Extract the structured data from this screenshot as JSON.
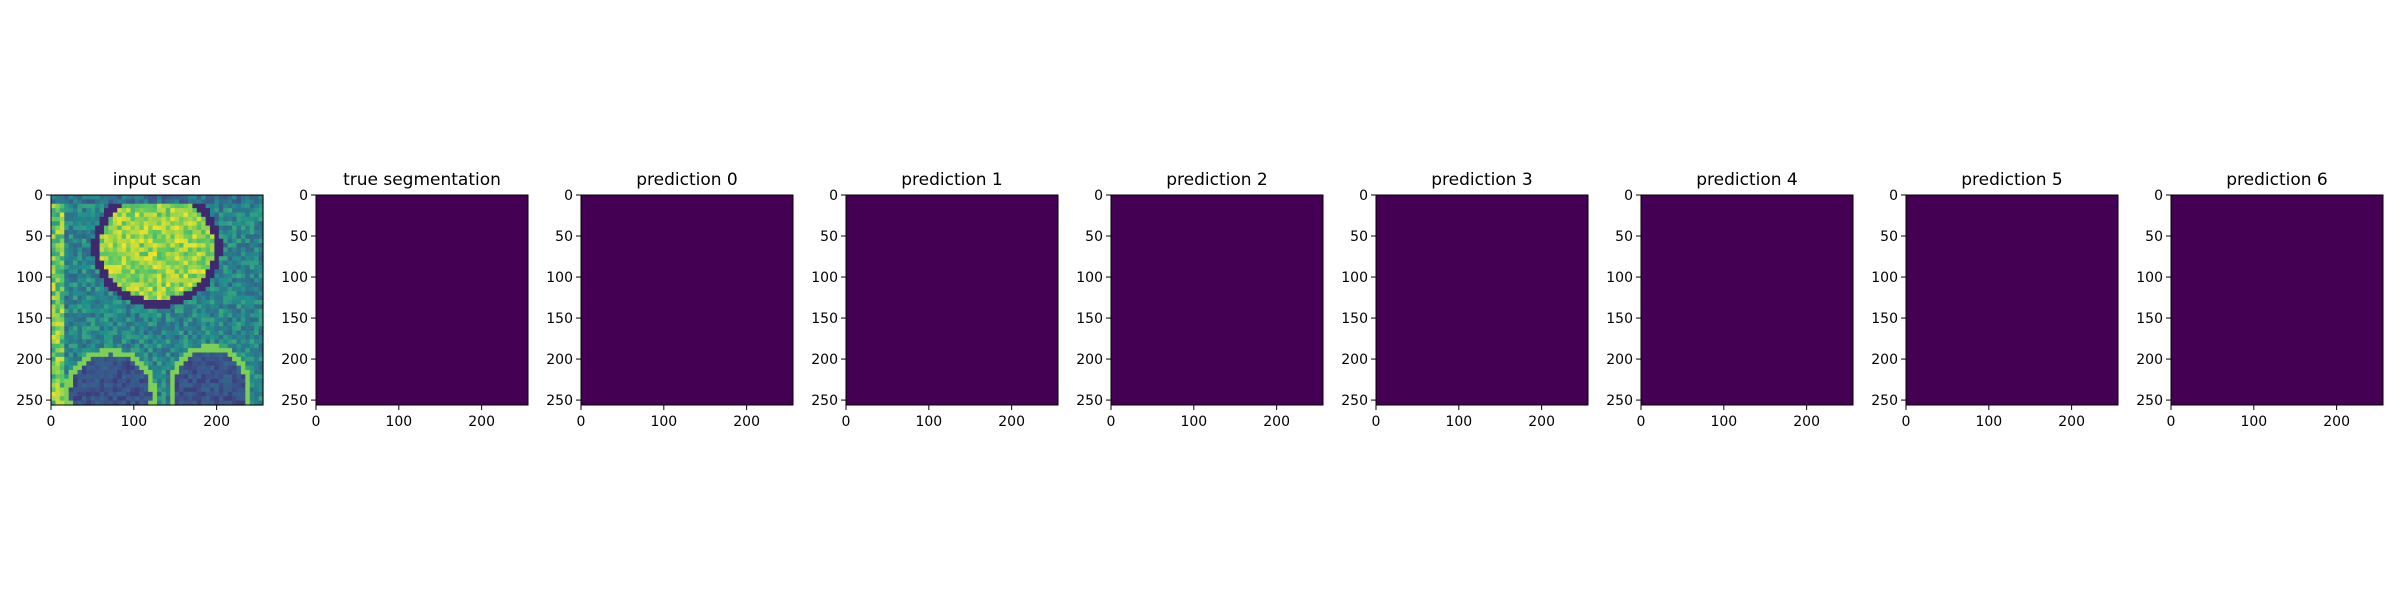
{
  "colors": {
    "background_class": "#440154",
    "foreground_class": "#fde725",
    "frame": "#000000"
  },
  "chart_data": [
    {
      "type": "heatmap",
      "title": "input scan",
      "image": "knee MRI slice rendered with viridis colormap",
      "x_ticks": [
        "0",
        "100",
        "200"
      ],
      "y_ticks": [
        "0",
        "50",
        "100",
        "150",
        "200",
        "250"
      ],
      "xlim": [
        0,
        256
      ],
      "ylim": [
        256,
        0
      ]
    },
    {
      "type": "heatmap",
      "title": "true segmentation",
      "fill_value": 0,
      "x_ticks": [
        "0",
        "100",
        "200"
      ],
      "y_ticks": [
        "0",
        "50",
        "100",
        "150",
        "200",
        "250"
      ],
      "xlim": [
        0,
        256
      ],
      "ylim": [
        256,
        0
      ]
    },
    {
      "type": "heatmap",
      "title": "prediction 0",
      "fill_value": 0,
      "x_ticks": [
        "0",
        "100",
        "200"
      ],
      "y_ticks": [
        "0",
        "50",
        "100",
        "150",
        "200",
        "250"
      ],
      "xlim": [
        0,
        256
      ],
      "ylim": [
        256,
        0
      ]
    },
    {
      "type": "heatmap",
      "title": "prediction 1",
      "fill_value": 0,
      "x_ticks": [
        "0",
        "100",
        "200"
      ],
      "y_ticks": [
        "0",
        "50",
        "100",
        "150",
        "200",
        "250"
      ],
      "xlim": [
        0,
        256
      ],
      "ylim": [
        256,
        0
      ]
    },
    {
      "type": "heatmap",
      "title": "prediction 2",
      "fill_value": 0,
      "x_ticks": [
        "0",
        "100",
        "200"
      ],
      "y_ticks": [
        "0",
        "50",
        "100",
        "150",
        "200",
        "250"
      ],
      "xlim": [
        0,
        256
      ],
      "ylim": [
        256,
        0
      ]
    },
    {
      "type": "heatmap",
      "title": "prediction 3",
      "fill_value": 0,
      "x_ticks": [
        "0",
        "100",
        "200"
      ],
      "y_ticks": [
        "0",
        "50",
        "100",
        "150",
        "200",
        "250"
      ],
      "xlim": [
        0,
        256
      ],
      "ylim": [
        256,
        0
      ]
    },
    {
      "type": "heatmap",
      "title": "prediction 4",
      "fill_value": 0,
      "x_ticks": [
        "0",
        "100",
        "200"
      ],
      "y_ticks": [
        "0",
        "50",
        "100",
        "150",
        "200",
        "250"
      ],
      "xlim": [
        0,
        256
      ],
      "ylim": [
        256,
        0
      ]
    },
    {
      "type": "heatmap",
      "title": "prediction 5",
      "fill_value": 0,
      "x_ticks": [
        "0",
        "100",
        "200"
      ],
      "y_ticks": [
        "0",
        "50",
        "100",
        "150",
        "200",
        "250"
      ],
      "xlim": [
        0,
        256
      ],
      "ylim": [
        256,
        0
      ]
    },
    {
      "type": "heatmap",
      "title": "prediction 6",
      "fill_value": 0,
      "x_ticks": [
        "0",
        "100",
        "200"
      ],
      "y_ticks": [
        "0",
        "50",
        "100",
        "150",
        "200",
        "250"
      ],
      "xlim": [
        0,
        256
      ],
      "ylim": [
        256,
        0
      ]
    }
  ]
}
